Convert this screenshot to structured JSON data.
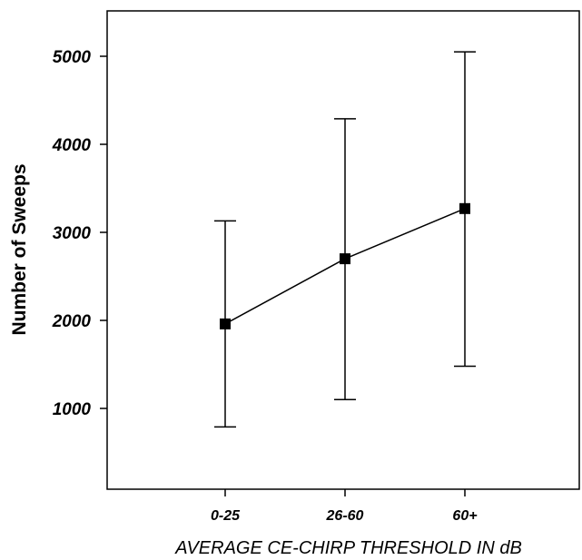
{
  "chart_data": {
    "type": "line",
    "xlabel": "AVERAGE CE-CHIRP THRESHOLD IN dB",
    "ylabel": "Number of Sweeps",
    "categories": [
      "0-25",
      "26-60",
      "60+"
    ],
    "series": [
      {
        "values": [
          1960,
          2700,
          3270
        ],
        "error_low": [
          790,
          1100,
          1480
        ],
        "error_high": [
          3130,
          4290,
          5050
        ]
      }
    ],
    "y_ticks": [
      1000,
      2000,
      3000,
      4000,
      5000
    ],
    "ylim": [
      0,
      5500
    ],
    "grid": false,
    "legend": "none",
    "marker": "square",
    "colors": {
      "line": "#000000",
      "marker": "#000000",
      "axis": "#000000"
    }
  }
}
